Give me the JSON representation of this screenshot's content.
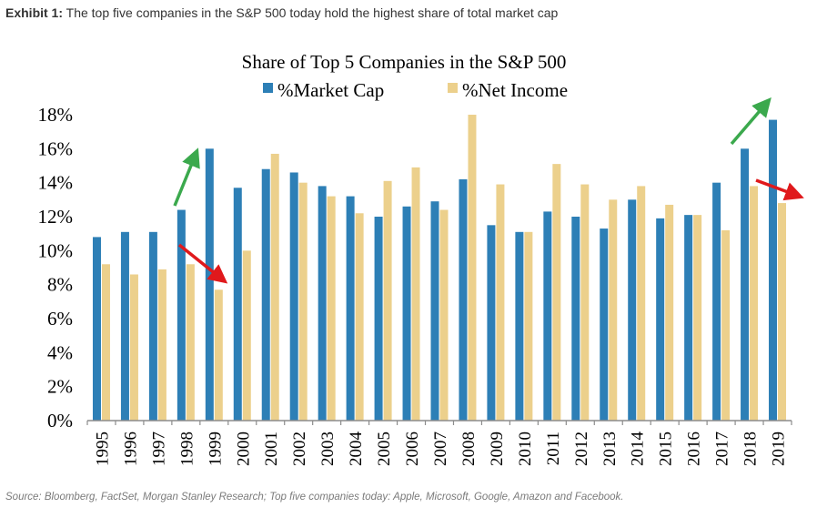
{
  "header": {
    "exhibit_label": "Exhibit 1:",
    "caption": "The top five companies in the S&P 500 today hold the highest share of total market cap"
  },
  "source_note": "Source: Bloomberg, FactSet, Morgan Stanley Research; Top five companies today: Apple, Microsoft, Google, Amazon and Facebook.",
  "colors": {
    "market_cap": "#2d7fb6",
    "net_income": "#ecd08c",
    "up_arrow": "#3ba94d",
    "down_arrow": "#e0191c",
    "axis": "#8c8c8c",
    "text": "#000000"
  },
  "chart_data": {
    "type": "bar",
    "title": "Share of Top 5 Companies in the S&P 500",
    "xlabel": "",
    "ylabel": "",
    "ylim": [
      0,
      18
    ],
    "yticks": [
      0,
      2,
      4,
      6,
      8,
      10,
      12,
      14,
      16,
      18
    ],
    "ytick_labels": [
      "0%",
      "2%",
      "4%",
      "6%",
      "8%",
      "10%",
      "12%",
      "14%",
      "16%",
      "18%"
    ],
    "legend_position": "top-center",
    "grid": false,
    "categories": [
      "1995",
      "1996",
      "1997",
      "1998",
      "1999",
      "2000",
      "2001",
      "2002",
      "2003",
      "2004",
      "2005",
      "2006",
      "2007",
      "2008",
      "2009",
      "2010",
      "2011",
      "2012",
      "2013",
      "2014",
      "2015",
      "2016",
      "2017",
      "2018",
      "2019"
    ],
    "series": [
      {
        "name": "%Market Cap",
        "values": [
          10.8,
          11.1,
          11.1,
          12.4,
          16.0,
          13.7,
          14.8,
          14.6,
          13.8,
          13.2,
          12.0,
          12.6,
          12.9,
          14.2,
          11.5,
          11.1,
          12.3,
          12.0,
          11.3,
          13.0,
          11.9,
          12.1,
          14.0,
          16.0,
          17.7
        ]
      },
      {
        "name": "%Net Income",
        "values": [
          9.2,
          8.6,
          8.9,
          9.2,
          7.7,
          10.0,
          15.7,
          14.0,
          13.2,
          12.2,
          14.1,
          14.9,
          12.4,
          18.0,
          13.9,
          11.1,
          15.1,
          13.9,
          13.0,
          13.8,
          12.7,
          12.1,
          11.2,
          13.8,
          12.8
        ]
      }
    ],
    "annotations": [
      {
        "type": "arrow",
        "direction": "up",
        "color": "green",
        "near": "1998-1999"
      },
      {
        "type": "arrow",
        "direction": "down",
        "color": "red",
        "near": "1998-1999"
      },
      {
        "type": "arrow",
        "direction": "up",
        "color": "green",
        "near": "2018-2019"
      },
      {
        "type": "arrow",
        "direction": "down",
        "color": "red",
        "near": "2019"
      }
    ]
  }
}
